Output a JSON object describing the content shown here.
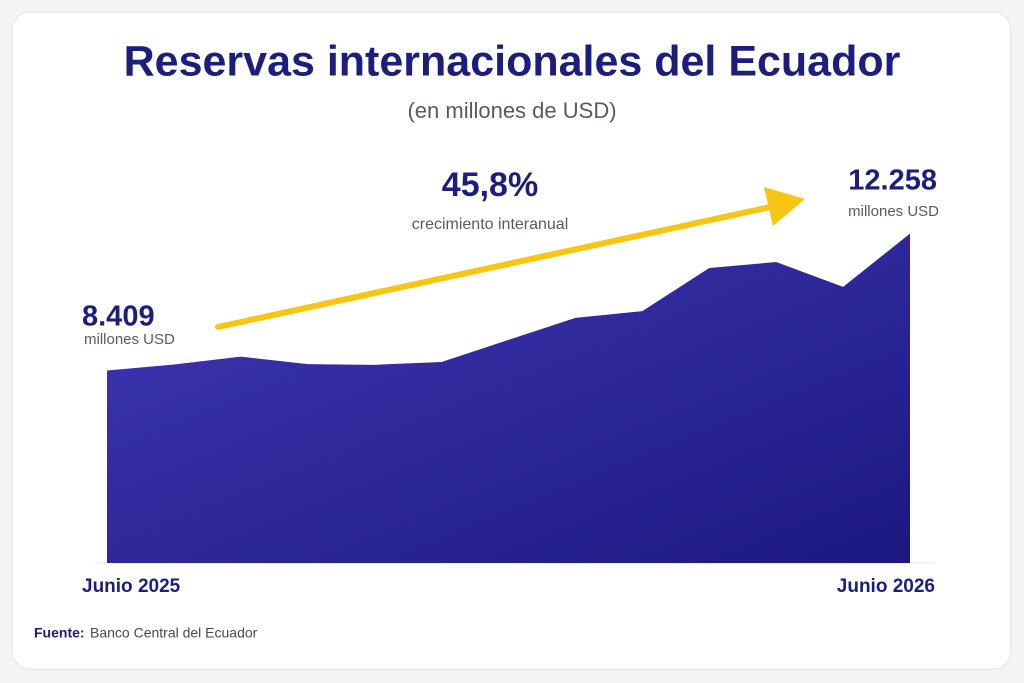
{
  "chart_data": {
    "type": "area",
    "title": "Reservas internacionales del Ecuador",
    "subtitle": "(en millones de USD)",
    "categories": [
      "Junio 2025",
      null,
      null,
      null,
      null,
      null,
      null,
      null,
      null,
      null,
      null,
      null,
      "Junio 2026"
    ],
    "values": [
      8409,
      8580,
      8800,
      8590,
      8570,
      8650,
      9270,
      9890,
      10080,
      11290,
      11460,
      10760,
      12258
    ],
    "value_labels": [
      "8.409",
      null,
      null,
      null,
      null,
      null,
      null,
      null,
      null,
      null,
      null,
      null,
      "12.258"
    ],
    "value_unit": "millones USD",
    "growth": "45,8%",
    "growth_label": "crecimiento interanual",
    "color": "#3a34b0",
    "arrow_color": "#f7c512",
    "ylim": [
      3000,
      12500
    ],
    "source_label": "Fuente:",
    "source": "Banco Central del Ecuador"
  }
}
